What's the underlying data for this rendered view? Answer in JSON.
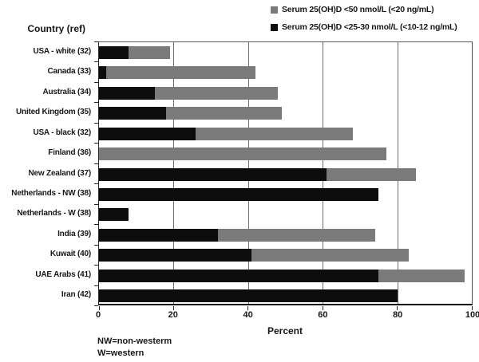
{
  "legend": [
    {
      "label": "Serum 25(OH)D <50 nmol/L (<20 ng/mL)",
      "color": "#7a7a7a"
    },
    {
      "label": "Serum 25(OH)D <25-30 nmol/L (<10-12 ng/mL)",
      "color": "#0d0d0d"
    }
  ],
  "y_axis_header": "Country (ref)",
  "x_axis": {
    "label": "Percent",
    "ticks": [
      0,
      20,
      40,
      60,
      80,
      100
    ]
  },
  "footnotes": [
    "NW=non-westerm",
    "W=western"
  ],
  "chart_data": {
    "type": "bar",
    "orientation": "horizontal",
    "title": "",
    "xlabel": "Percent",
    "ylabel": "Country (ref)",
    "xlim": [
      0,
      100
    ],
    "grid": "vertical",
    "legend_position": "top-right",
    "categories": [
      "USA - white (32)",
      "Canada (33)",
      "Australia (34)",
      "United Kingdom (35)",
      "USA - black (32)",
      "Finland (36)",
      "New Zealand (37)",
      "Netherlands - NW (38)",
      "Netherlands - W (38)",
      "India (39)",
      "Kuwait (40)",
      "UAE Arabs (41)",
      "Iran (42)"
    ],
    "series": [
      {
        "name": "Serum 25(OH)D <50 nmol/L (<20 ng/mL)",
        "color": "#7a7a7a",
        "values": [
          19,
          42,
          48,
          49,
          68,
          77,
          85,
          75,
          8,
          74,
          83,
          98,
          80
        ]
      },
      {
        "name": "Serum 25(OH)D <25-30 nmol/L (<10-12 ng/mL)",
        "color": "#0d0d0d",
        "values": [
          8,
          2,
          15,
          18,
          26,
          0,
          61,
          75,
          8,
          32,
          41,
          75,
          80
        ]
      }
    ]
  }
}
